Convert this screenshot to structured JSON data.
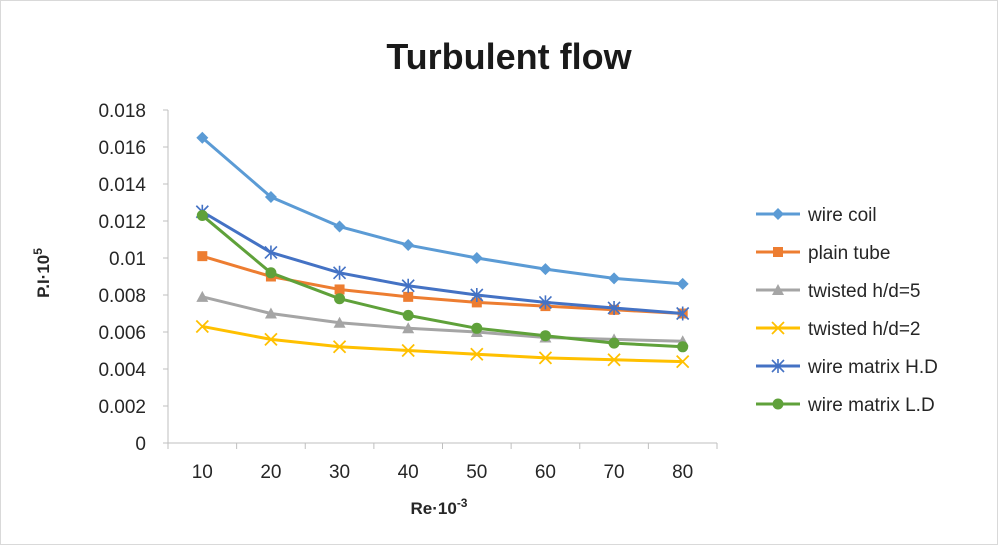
{
  "chart_data": {
    "type": "line",
    "title": "Turbulent flow",
    "xlabel": {
      "base": "Re·10",
      "sup": "-3"
    },
    "ylabel": {
      "base": "P.I·10",
      "sup": "5"
    },
    "categories": [
      "10",
      "20",
      "30",
      "40",
      "50",
      "60",
      "70",
      "80"
    ],
    "ylim": [
      0,
      0.018
    ],
    "yticks": [
      "0",
      "0.002",
      "0.004",
      "0.006",
      "0.008",
      "0.01",
      "0.012",
      "0.014",
      "0.016",
      "0.018"
    ],
    "grid": false,
    "legend_position": "right",
    "series": [
      {
        "name": "wire coil",
        "color": "#5b9bd5",
        "marker": "diamond",
        "values": [
          0.0165,
          0.0133,
          0.0117,
          0.0107,
          0.01,
          0.0094,
          0.0089,
          0.0086
        ]
      },
      {
        "name": "plain tube",
        "color": "#ed7d31",
        "marker": "square",
        "values": [
          0.0101,
          0.009,
          0.0083,
          0.0079,
          0.0076,
          0.0074,
          0.0072,
          0.007
        ]
      },
      {
        "name": "twisted h/d=5",
        "color": "#a5a5a5",
        "marker": "triangle",
        "values": [
          0.0079,
          0.007,
          0.0065,
          0.0062,
          0.006,
          0.0057,
          0.0056,
          0.0055
        ]
      },
      {
        "name": "twisted h/d=2",
        "color": "#ffc000",
        "marker": "x",
        "values": [
          0.0063,
          0.0056,
          0.0052,
          0.005,
          0.0048,
          0.0046,
          0.0045,
          0.0044
        ]
      },
      {
        "name": "wire matrix H.D",
        "color": "#4472c4",
        "marker": "star",
        "values": [
          0.0125,
          0.0103,
          0.0092,
          0.0085,
          0.008,
          0.0076,
          0.0073,
          0.007
        ]
      },
      {
        "name": "wire matrix L.D",
        "color": "#5fa13a",
        "marker": "circle",
        "values": [
          0.0123,
          0.0092,
          0.0078,
          0.0069,
          0.0062,
          0.0058,
          0.0054,
          0.0052
        ]
      }
    ]
  }
}
